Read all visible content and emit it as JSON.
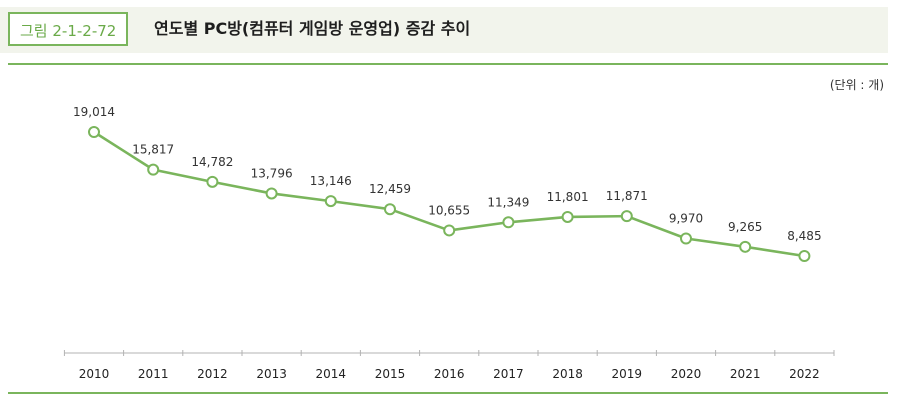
{
  "figure": {
    "label": "그림 2-1-2-72",
    "title": "연도별 PC방(컴퓨터 게임방 운영업) 증감 추이",
    "unit": "(단위 : 개)"
  },
  "colors": {
    "accent": "#7ab55c",
    "line": "#7ab55c",
    "header_bg": "#f2f4ec"
  },
  "chart_data": {
    "type": "line",
    "categories": [
      "2010",
      "2011",
      "2012",
      "2013",
      "2014",
      "2015",
      "2016",
      "2017",
      "2018",
      "2019",
      "2020",
      "2021",
      "2022"
    ],
    "series": [
      {
        "values": [
          19014,
          15817,
          14782,
          13796,
          13146,
          12459,
          10655,
          11349,
          11801,
          11871,
          9970,
          9265,
          8485
        ]
      }
    ],
    "data_labels": [
      "19,014",
      "15,817",
      "14,782",
      "13,796",
      "13,146",
      "12,459",
      "10,655",
      "11,349",
      "11,801",
      "11,871",
      "9,970",
      "9,265",
      "8,485"
    ],
    "title": "",
    "xlabel": "",
    "ylabel": "",
    "grid": false,
    "legend": "none"
  }
}
